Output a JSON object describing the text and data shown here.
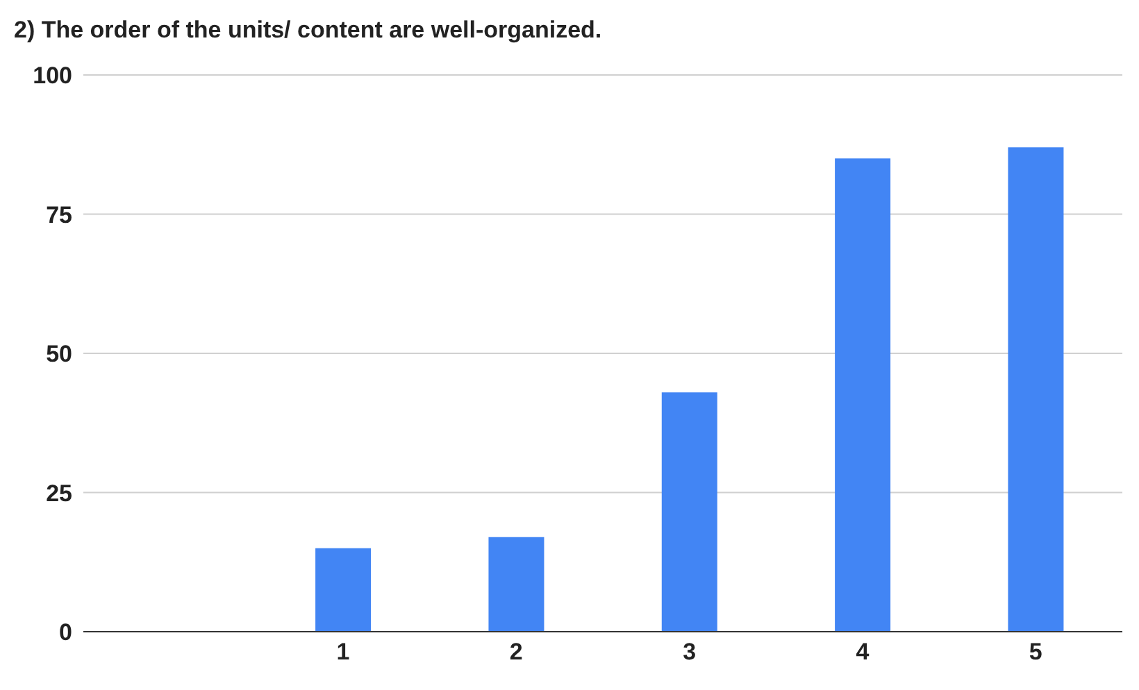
{
  "chart_data": {
    "type": "bar",
    "title": "2) The order of the units/ content are well-organized.",
    "categories": [
      null,
      "1",
      "2",
      "3",
      "4",
      "5"
    ],
    "values": [
      null,
      15,
      17,
      43,
      85,
      87
    ],
    "color": "#4285f4",
    "ylim": [
      0,
      100
    ],
    "yticks": [
      0,
      25,
      50,
      75,
      100
    ],
    "grid": "y"
  }
}
